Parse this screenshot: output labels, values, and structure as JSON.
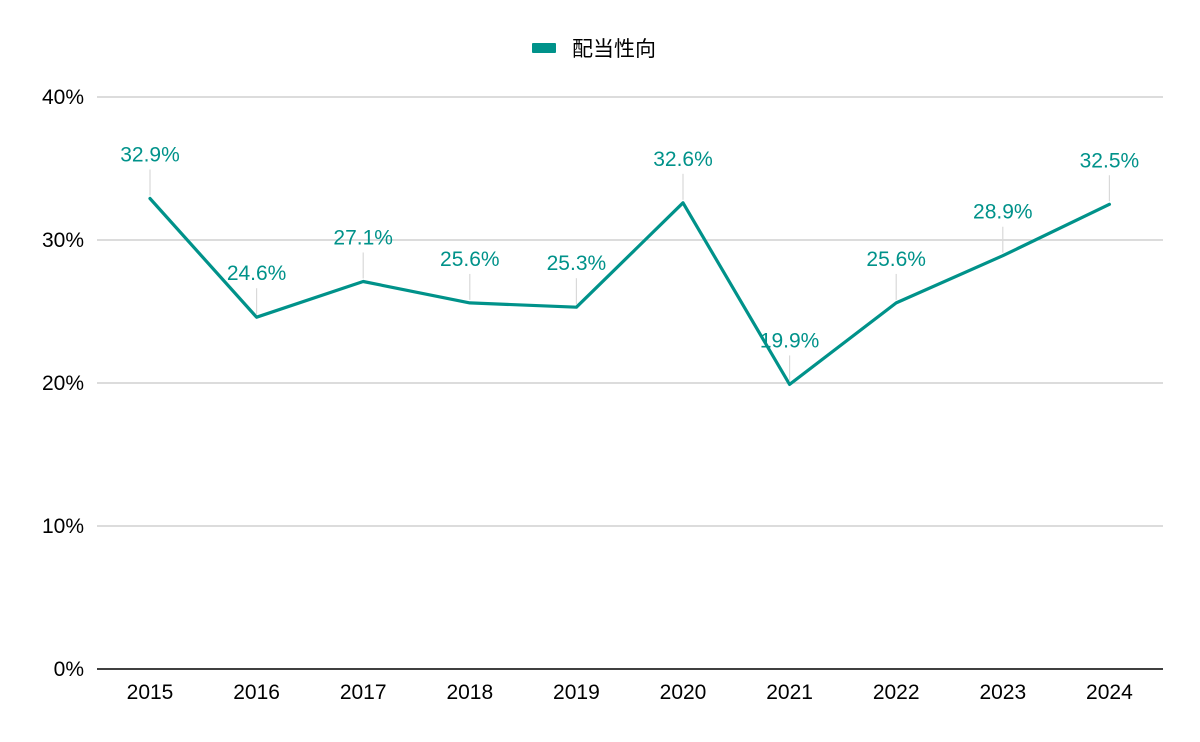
{
  "chart_data": {
    "type": "line",
    "title": "",
    "xlabel": "",
    "ylabel": "",
    "categories": [
      "2015",
      "2016",
      "2017",
      "2018",
      "2019",
      "2020",
      "2021",
      "2022",
      "2023",
      "2024"
    ],
    "series": [
      {
        "name": "配当性向",
        "color": "#00928a",
        "values": [
          32.9,
          24.6,
          27.1,
          25.6,
          25.3,
          32.6,
          19.9,
          25.6,
          28.9,
          32.5
        ],
        "labels": [
          "32.9%",
          "24.6%",
          "27.1%",
          "25.6%",
          "25.3%",
          "32.6%",
          "19.9%",
          "25.6%",
          "28.9%",
          "32.5%"
        ]
      }
    ],
    "ylim": [
      0,
      40
    ],
    "yticks": [
      0,
      10,
      20,
      30,
      40
    ],
    "ytick_labels": [
      "0%",
      "10%",
      "20%",
      "30%",
      "40%"
    ],
    "grid": true,
    "legend_position": "top-center",
    "colors": {
      "grid": "#c8c8c8",
      "axis": "#000000",
      "leader": "#d9d9d9"
    }
  }
}
